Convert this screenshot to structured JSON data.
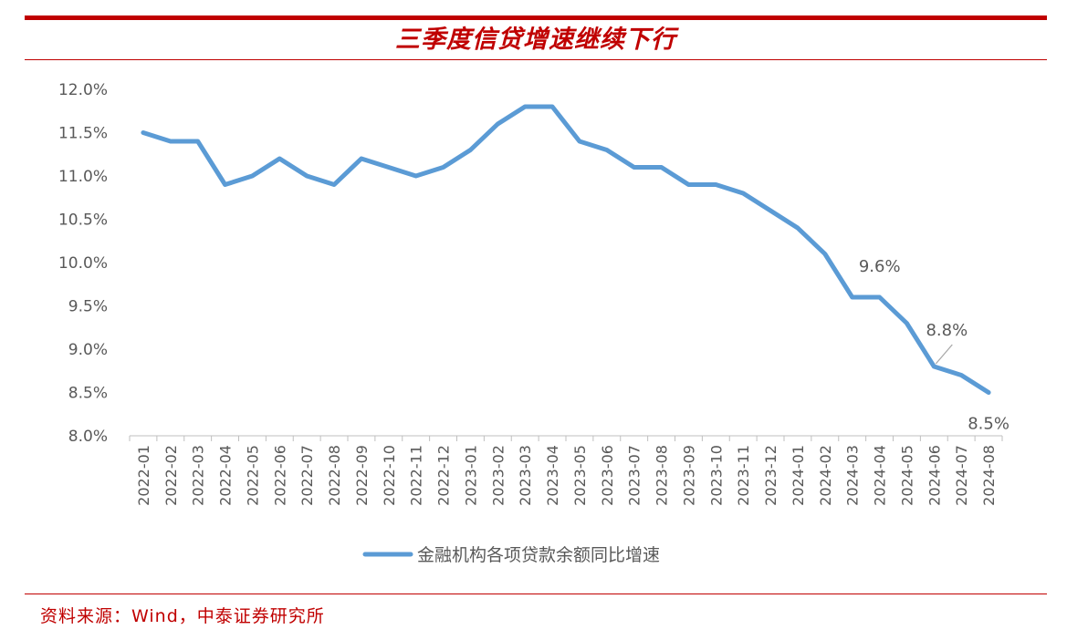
{
  "title": "三季度信贷增速继续下行",
  "source": "资料来源：Wind，中泰证券研究所",
  "colors": {
    "accent": "#c00000",
    "series": "#5b9bd5",
    "axis_text": "#595959",
    "axis_line": "#bfbfbf"
  },
  "chart_data": {
    "type": "line",
    "x": [
      "2022-01",
      "2022-02",
      "2022-03",
      "2022-04",
      "2022-05",
      "2022-06",
      "2022-07",
      "2022-08",
      "2022-09",
      "2022-10",
      "2022-11",
      "2022-12",
      "2023-01",
      "2023-02",
      "2023-03",
      "2023-04",
      "2023-05",
      "2023-06",
      "2023-07",
      "2023-08",
      "2023-09",
      "2023-10",
      "2023-11",
      "2023-12",
      "2024-01",
      "2024-02",
      "2024-03",
      "2024-04",
      "2024-05",
      "2024-06",
      "2024-07",
      "2024-08"
    ],
    "series": [
      {
        "name": "金融机构各项贷款余额同比增速",
        "values": [
          11.5,
          11.4,
          11.4,
          10.9,
          11.0,
          11.2,
          11.0,
          10.9,
          11.2,
          11.1,
          11.0,
          11.1,
          11.3,
          11.6,
          11.8,
          11.8,
          11.4,
          11.3,
          11.1,
          11.1,
          10.9,
          10.9,
          10.8,
          10.6,
          10.4,
          10.1,
          9.6,
          9.6,
          9.3,
          8.8,
          8.7,
          8.5
        ]
      }
    ],
    "ylim": [
      8.0,
      12.0
    ],
    "yticks": [
      "8.0%",
      "8.5%",
      "9.0%",
      "9.5%",
      "10.0%",
      "10.5%",
      "11.0%",
      "11.5%",
      "12.0%"
    ],
    "ytick_values": [
      8.0,
      8.5,
      9.0,
      9.5,
      10.0,
      10.5,
      11.0,
      11.5,
      12.0
    ],
    "annotations": [
      {
        "x": "2024-03",
        "text": "9.6%"
      },
      {
        "x": "2024-06",
        "text": "8.8%"
      },
      {
        "x": "2024-08",
        "text": "8.5%"
      }
    ],
    "grid": false,
    "legend": "bottom"
  }
}
